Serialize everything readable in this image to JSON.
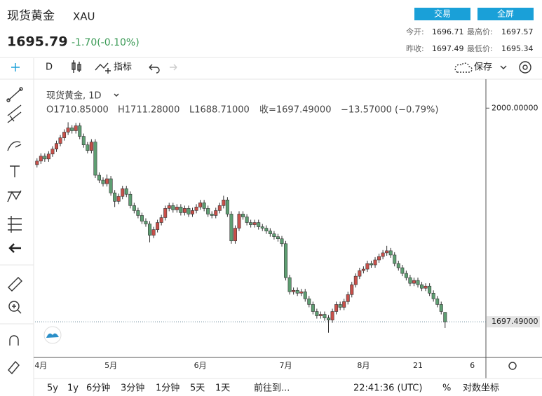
{
  "header": {
    "name": "现货黄金",
    "symbol": "XAU",
    "price": "1695.79",
    "change": "-1.70(-0.10%)",
    "buttons": [
      "交易",
      "全屏"
    ],
    "stats": [
      {
        "label": "今开:",
        "value": "1696.71"
      },
      {
        "label": "最高价:",
        "value": "1697.57"
      },
      {
        "label": "昨收:",
        "value": "1697.49"
      },
      {
        "label": "最低价:",
        "value": "1695.34"
      }
    ]
  },
  "toolbar": {
    "interval": "D",
    "indicators": "指标",
    "save": "保存"
  },
  "legend": {
    "title": "现货黄金, 1D",
    "items": [
      "O1710.85000",
      "H1711.28000",
      "L1688.71000",
      "收=1697.49000",
      "−13.57000 (−0.79%)"
    ]
  },
  "bottom_bar": {
    "ranges": [
      "5y",
      "1y",
      "6分钟",
      "3分钟",
      "1分钟",
      "5天",
      "1天"
    ],
    "goto": "前往到...",
    "time": "22:41:36 (UTC)",
    "percent": "%",
    "log": "对数坐标"
  },
  "chart_data": {
    "type": "candlestick",
    "up_color": "#c9504a",
    "down_color": "#5e9e72",
    "ylim": [
      1647,
      2036
    ],
    "yticks": [
      {
        "value": 2000,
        "label": "2000.00000"
      }
    ],
    "last_price": {
      "value": 1697.49,
      "label": "1697.49000"
    },
    "categories": [
      null,
      "4月",
      null,
      null,
      null,
      null,
      null,
      null,
      null,
      null,
      null,
      null,
      null,
      null,
      null,
      null,
      null,
      null,
      null,
      "5月",
      null,
      null,
      null,
      null,
      null,
      null,
      null,
      null,
      null,
      null,
      null,
      null,
      null,
      null,
      null,
      null,
      null,
      null,
      null,
      null,
      null,
      null,
      "6月",
      null,
      null,
      null,
      null,
      null,
      null,
      null,
      null,
      null,
      null,
      null,
      null,
      null,
      null,
      null,
      null,
      null,
      null,
      null,
      null,
      null,
      "7月",
      null,
      null,
      null,
      null,
      null,
      null,
      null,
      null,
      null,
      null,
      null,
      null,
      null,
      null,
      null,
      null,
      null,
      null,
      null,
      "8月",
      null,
      null,
      null,
      null,
      null,
      null,
      null,
      null,
      null,
      null,
      null,
      null,
      null,
      "21",
      null,
      null,
      null,
      null,
      null,
      null,
      null,
      null,
      null,
      null,
      null,
      null,
      null,
      "6",
      null,
      null,
      null
    ],
    "open": [
      1920,
      1925,
      1932,
      1928,
      1935,
      1942,
      1950,
      1958,
      1966,
      1972,
      1968,
      1975,
      1960,
      1948,
      1940,
      1952,
      1905,
      1898,
      1893,
      1900,
      1880,
      1868,
      1875,
      1886,
      1878,
      1862,
      1855,
      1848,
      1840,
      1836,
      1820,
      1828,
      1838,
      1845,
      1858,
      1862,
      1856,
      1860,
      1852,
      1858,
      1850,
      1855,
      1860,
      1866,
      1858,
      1850,
      1848,
      1855,
      1862,
      1870,
      1850,
      1812,
      1830,
      1850,
      1846,
      1838,
      1835,
      1838,
      1832,
      1830,
      1826,
      1822,
      1818,
      1815,
      1808,
      1760,
      1740,
      1742,
      1738,
      1740,
      1730,
      1722,
      1712,
      1706,
      1708,
      1703,
      1700,
      1712,
      1722,
      1718,
      1726,
      1736,
      1750,
      1762,
      1770,
      1772,
      1780,
      1778,
      1785,
      1790,
      1795,
      1798,
      1792,
      1780,
      1774,
      1766,
      1760,
      1752,
      1756,
      1750,
      1745,
      1748,
      1738,
      1730,
      1722,
      1710.85,
      null,
      null,
      null,
      null,
      null,
      null,
      null,
      null,
      null,
      null
    ],
    "high": [
      1929,
      1936,
      1936,
      1939,
      1946,
      1954,
      1962,
      1970,
      1980,
      1976,
      1979,
      1979,
      1964,
      1952,
      1956,
      1956,
      1909,
      1902,
      1906,
      1904,
      1884,
      1879,
      1890,
      1890,
      1882,
      1866,
      1859,
      1852,
      1844,
      1840,
      1832,
      1842,
      1849,
      1862,
      1866,
      1866,
      1864,
      1864,
      1862,
      1862,
      1859,
      1864,
      1870,
      1870,
      1862,
      1854,
      1859,
      1866,
      1876,
      1874,
      1854,
      1834,
      1854,
      1854,
      1850,
      1842,
      1842,
      1842,
      1836,
      1834,
      1830,
      1826,
      1822,
      1819,
      1812,
      1764,
      1746,
      1746,
      1744,
      1744,
      1734,
      1726,
      1716,
      1712,
      1712,
      1707,
      1716,
      1726,
      1726,
      1730,
      1740,
      1754,
      1766,
      1774,
      1776,
      1784,
      1784,
      1789,
      1794,
      1799,
      1805,
      1802,
      1796,
      1784,
      1778,
      1770,
      1764,
      1760,
      1760,
      1754,
      1752,
      1752,
      1742,
      1734,
      1726,
      1711.28,
      null,
      null,
      null,
      null,
      null,
      null,
      null,
      null,
      null,
      null
    ],
    "low": [
      1916,
      1921,
      1924,
      1924,
      1931,
      1938,
      1946,
      1954,
      1962,
      1964,
      1964,
      1956,
      1944,
      1936,
      1936,
      1901,
      1894,
      1889,
      1889,
      1876,
      1860,
      1864,
      1871,
      1874,
      1858,
      1851,
      1844,
      1836,
      1832,
      1810,
      1816,
      1824,
      1834,
      1841,
      1854,
      1852,
      1852,
      1848,
      1848,
      1846,
      1846,
      1851,
      1856,
      1854,
      1846,
      1844,
      1844,
      1851,
      1858,
      1846,
      1808,
      1808,
      1826,
      1842,
      1834,
      1831,
      1831,
      1828,
      1826,
      1822,
      1818,
      1814,
      1811,
      1804,
      1756,
      1736,
      1736,
      1734,
      1734,
      1726,
      1718,
      1708,
      1702,
      1702,
      1699,
      1682,
      1696,
      1708,
      1714,
      1714,
      1722,
      1732,
      1746,
      1758,
      1766,
      1768,
      1774,
      1774,
      1781,
      1786,
      1791,
      1788,
      1776,
      1770,
      1762,
      1756,
      1748,
      1748,
      1746,
      1741,
      1741,
      1734,
      1726,
      1718,
      1708,
      1688.71,
      null,
      null,
      null,
      null,
      null,
      null,
      null,
      null,
      null,
      null
    ],
    "close": [
      1925,
      1932,
      1928,
      1935,
      1942,
      1950,
      1958,
      1966,
      1972,
      1968,
      1975,
      1960,
      1948,
      1940,
      1952,
      1905,
      1898,
      1893,
      1900,
      1880,
      1868,
      1875,
      1886,
      1878,
      1862,
      1855,
      1848,
      1840,
      1836,
      1820,
      1828,
      1838,
      1845,
      1858,
      1862,
      1856,
      1860,
      1852,
      1858,
      1850,
      1855,
      1860,
      1866,
      1858,
      1850,
      1848,
      1855,
      1862,
      1870,
      1850,
      1812,
      1830,
      1850,
      1846,
      1838,
      1835,
      1838,
      1832,
      1830,
      1826,
      1822,
      1818,
      1815,
      1808,
      1760,
      1740,
      1742,
      1738,
      1740,
      1730,
      1722,
      1712,
      1706,
      1708,
      1703,
      1700,
      1712,
      1722,
      1718,
      1726,
      1736,
      1750,
      1762,
      1770,
      1772,
      1780,
      1778,
      1785,
      1790,
      1795,
      1798,
      1792,
      1780,
      1774,
      1766,
      1760,
      1752,
      1756,
      1750,
      1745,
      1748,
      1738,
      1730,
      1722,
      1712,
      1697.49,
      null,
      null,
      null,
      null,
      null,
      null,
      null,
      null,
      null,
      null
    ]
  }
}
